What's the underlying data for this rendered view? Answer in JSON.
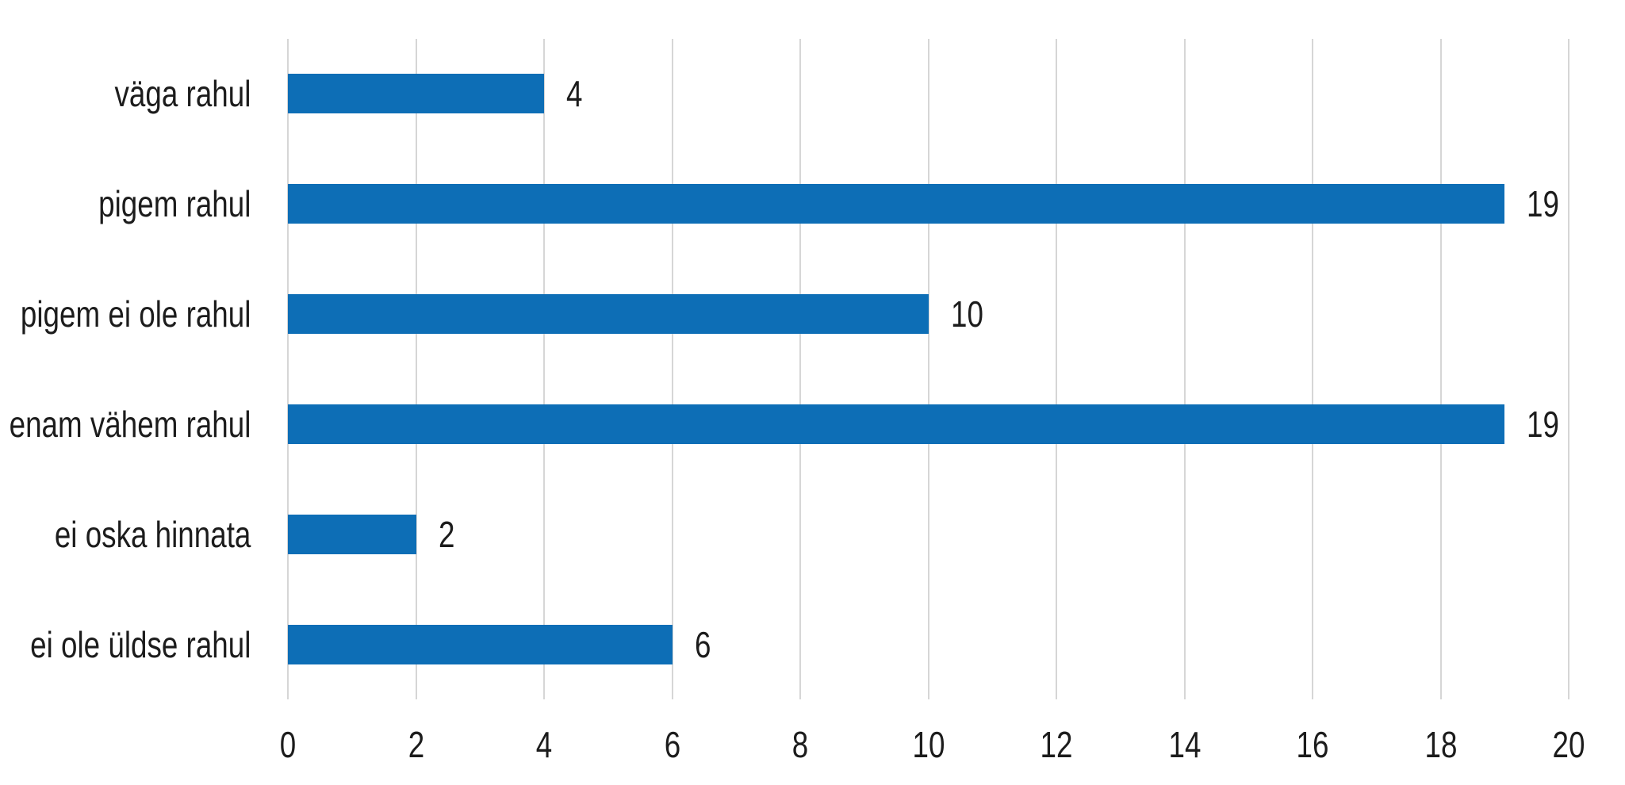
{
  "chart_data": {
    "type": "bar",
    "orientation": "horizontal",
    "title": "",
    "xlabel": "",
    "ylabel": "",
    "categories": [
      "väga rahul",
      "pigem rahul",
      "pigem ei ole rahul",
      "enam vähem rahul",
      "ei oska hinnata",
      "ei ole üldse rahul"
    ],
    "values": [
      4,
      19,
      10,
      19,
      2,
      6
    ],
    "value_labels": [
      "4",
      "19",
      "10",
      "19",
      "2",
      "6"
    ],
    "xlim": [
      0,
      20
    ],
    "xticks": [
      0,
      2,
      4,
      6,
      8,
      10,
      12,
      14,
      16,
      18,
      20
    ],
    "grid": "vertical",
    "legend": "none",
    "bar_color": "#0d6eb6",
    "gridline_color": "#d6d6d6",
    "text_color": "#1c1c1c",
    "background_color": "#ffffff"
  }
}
